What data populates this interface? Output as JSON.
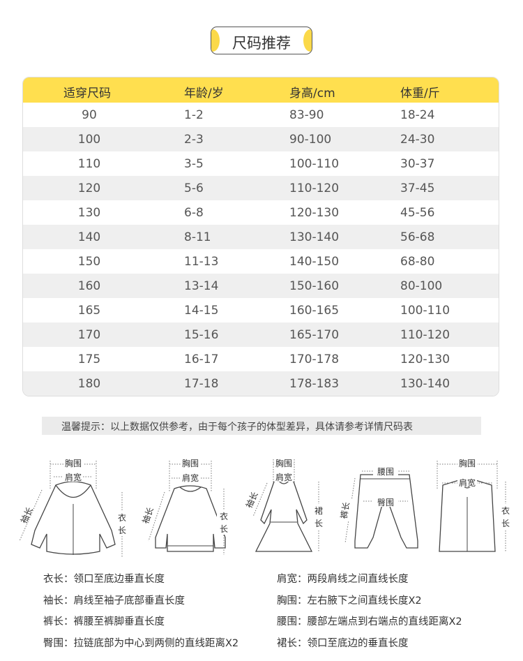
{
  "title": "尺码推荐",
  "table": {
    "headers": [
      "适穿尺码",
      "年龄/岁",
      "身高/cm",
      "体重/斤"
    ],
    "rows": [
      [
        "90",
        "1-2",
        "83-90",
        "18-24"
      ],
      [
        "100",
        "2-3",
        "90-100",
        "24-30"
      ],
      [
        "110",
        "3-5",
        "100-110",
        "30-37"
      ],
      [
        "120",
        "5-6",
        "110-120",
        "37-45"
      ],
      [
        "130",
        "6-8",
        "120-130",
        "45-56"
      ],
      [
        "140",
        "8-11",
        "130-140",
        "56-68"
      ],
      [
        "150",
        "11-13",
        "140-150",
        "68-80"
      ],
      [
        "160",
        "13-14",
        "150-160",
        "80-100"
      ],
      [
        "165",
        "14-15",
        "160-165",
        "100-110"
      ],
      [
        "170",
        "15-16",
        "165-170",
        "110-120"
      ],
      [
        "175",
        "16-17",
        "170-178",
        "120-130"
      ],
      [
        "180",
        "17-18",
        "178-183",
        "130-140"
      ]
    ]
  },
  "notice": "温馨提示：以上数据仅供参考，由于每个孩子的体型差异，具体请参考详情尺码表",
  "diagram_labels": {
    "chest": "胸围",
    "shoulder": "肩宽",
    "sleeve": "袖长",
    "length_v1": "衣",
    "length_v2": "长",
    "skirt_v1": "裙",
    "waist": "腰围",
    "hip": "臀围",
    "pants": "裤长"
  },
  "descriptions": [
    "衣长：领口至底边垂直长度",
    "肩宽：两段肩线之间直线长度",
    "袖长：肩线至袖子底部垂直长度",
    "胸围：左右腋下之间直线长度X2",
    "裤长：裤腰至裤脚垂直长度",
    "腰围：腰部左端点到右端点的直线距离X2",
    "臀围：拉链底部为中心到两侧的直线距离X2",
    "裙长：领口至底边的垂直长度"
  ],
  "colors": {
    "accent": "#ffdf4f",
    "row_alt": "#efefef"
  }
}
